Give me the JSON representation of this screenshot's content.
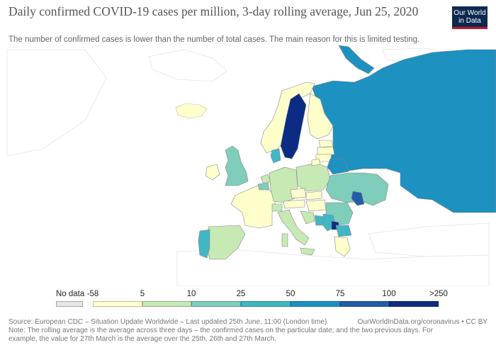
{
  "header": {
    "title": "Daily confirmed COVID-19 cases per million, 3-day rolling average, Jun 25, 2020",
    "subtitle": "The number of confirmed cases is lower than the number of total cases. The main reason for this is limited testing.",
    "logo_line1": "Our World",
    "logo_line2": "in Data"
  },
  "legend": {
    "no_data_label": "No data",
    "ticks": [
      "-58",
      "5",
      "10",
      "25",
      "50",
      "75",
      "100",
      ">250"
    ],
    "colors": [
      "#ffffcc",
      "#c7e9b4",
      "#7fcdbb",
      "#41b6c4",
      "#1d91c0",
      "#225ea8",
      "#0c2c84"
    ],
    "no_data_color": "#e6e6e6"
  },
  "footer": {
    "source": "Source: European CDC – Situation Update Worldwide – Last updated 25th June, 11:00 (London time)",
    "credit": "OurWorldInData.org/coronavirus • CC BY",
    "note_line1": "Note: The rolling average is the average across three days – the confirmed cases on the particular date, and the two previous days. For",
    "note_line2": "example, the value for 27th March is the average over the 25th, 26th and 27th March."
  }
}
